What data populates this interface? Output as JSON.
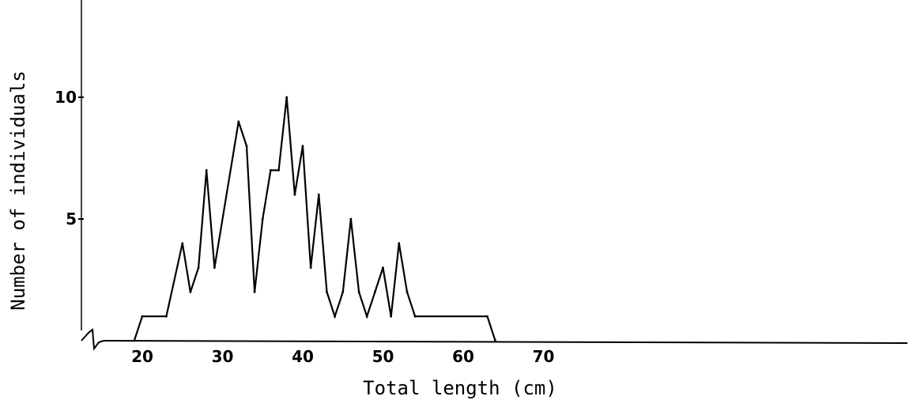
{
  "chart_data": {
    "type": "line",
    "xlabel": "Total length (cm)",
    "ylabel": "Number of individuals",
    "title": "",
    "xlim": [
      17,
      84
    ],
    "ylim": [
      0,
      14
    ],
    "x_ticks": [
      20,
      30,
      40,
      50,
      60,
      70
    ],
    "y_ticks": [
      5,
      10
    ],
    "axis_break": true,
    "grid": false,
    "series": [
      {
        "color": "#000000",
        "x": [
          19,
          20,
          23,
          25,
          26,
          27,
          28,
          29,
          32,
          33,
          34,
          35,
          36,
          37,
          38,
          39,
          40,
          41,
          42,
          43,
          44,
          45,
          46,
          47,
          48,
          49,
          50,
          51,
          52,
          53,
          54,
          63,
          64
        ],
        "y": [
          0,
          1,
          1,
          4,
          2,
          3,
          7,
          3,
          9,
          8,
          2,
          5,
          7,
          7,
          10,
          6,
          8,
          3,
          6,
          2,
          1,
          2,
          5,
          2,
          1,
          2,
          3,
          1,
          4,
          2,
          1,
          1,
          0
        ]
      }
    ]
  }
}
